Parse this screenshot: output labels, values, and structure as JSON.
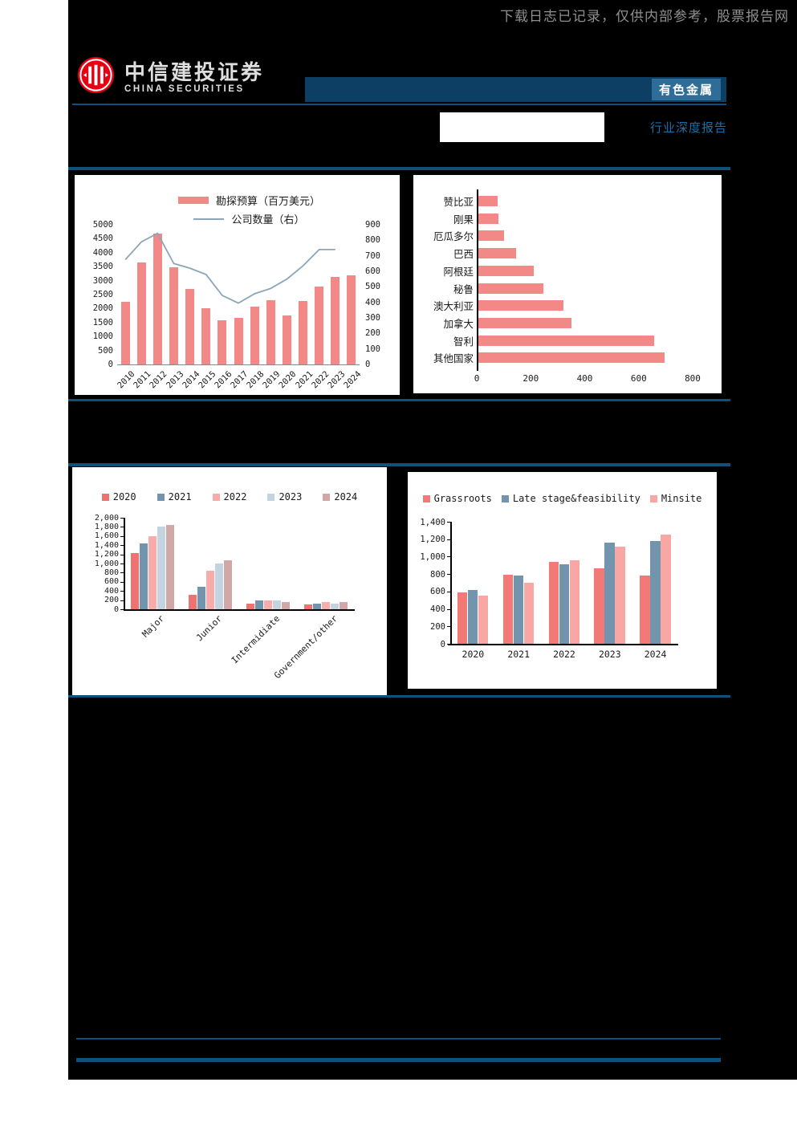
{
  "page": {
    "watermark": "下载日志已记录，仅供内部参考，股票报告网",
    "logo_cn": "中信建投证券",
    "logo_en": "CHINA SECURITIES",
    "sector_badge": "有色金属",
    "report_type_label": "行业深度报告"
  },
  "colors": {
    "page_background": "#000000",
    "rule_blue": "#0e517d",
    "header_bar_blue": "#0c3f63",
    "badge_blue": "#2d6d98",
    "report_type_text": "#1a6fa8",
    "logo_red": "#e60012",
    "bar_salmon": "#f38986",
    "line_bluegray": "#8ba6b8"
  },
  "chart_data": [
    {
      "type": "bar",
      "subtype": "bar+line-dual-axis",
      "x": [
        "2010",
        "2011",
        "2012",
        "2013",
        "2014",
        "2015",
        "2016",
        "2017",
        "2018",
        "2019",
        "2020",
        "2021",
        "2022",
        "2023",
        "2024"
      ],
      "series": [
        {
          "name": "勘探预算（百万美元）",
          "kind": "bar",
          "axis": "left",
          "color": "#f38986",
          "values": [
            2240,
            3640,
            4690,
            3480,
            2690,
            2000,
            1580,
            1680,
            2060,
            2300,
            1740,
            2270,
            2780,
            3140,
            3180
          ]
        },
        {
          "name": "公司数量（右）",
          "kind": "line",
          "axis": "right",
          "color": "#8ba6b8",
          "values": [
            675,
            790,
            845,
            650,
            620,
            580,
            445,
            395,
            455,
            490,
            550,
            635,
            740,
            740,
            null
          ]
        }
      ],
      "left_axis": {
        "min": 0,
        "max": 5000,
        "step": 500
      },
      "right_axis": {
        "min": 0,
        "max": 900,
        "step": 100
      },
      "legend_position": "top",
      "grid": false
    },
    {
      "type": "bar",
      "subtype": "horizontal",
      "categories": [
        "赞比亚",
        "刚果",
        "厄瓜多尔",
        "巴西",
        "阿根廷",
        "秘鲁",
        "澳大利亚",
        "加拿大",
        "智利",
        "其他国家"
      ],
      "values": [
        70,
        75,
        95,
        140,
        205,
        240,
        315,
        345,
        650,
        690
      ],
      "color": "#f38986",
      "xlim": [
        0,
        800
      ],
      "xticks": [
        0,
        200,
        400,
        600,
        800
      ],
      "grid": false
    },
    {
      "type": "bar",
      "subtype": "grouped",
      "categories": [
        "Major",
        "Junior",
        "Intermidiate",
        "Government/other"
      ],
      "series": [
        {
          "name": "2020",
          "color": "#ee7270",
          "values": [
            1230,
            310,
            130,
            100
          ]
        },
        {
          "name": "2021",
          "color": "#7295ad",
          "values": [
            1440,
            500,
            200,
            120
          ]
        },
        {
          "name": "2022",
          "color": "#f9aba9",
          "values": [
            1590,
            850,
            200,
            150
          ]
        },
        {
          "name": "2023",
          "color": "#c3d4e0",
          "values": [
            1810,
            1000,
            200,
            130
          ]
        },
        {
          "name": "2024",
          "color": "#d2a8a7",
          "values": [
            1850,
            1070,
            150,
            150
          ]
        }
      ],
      "ylim": [
        0,
        2000
      ],
      "ytick_step": 200,
      "legend_position": "top",
      "grid": false
    },
    {
      "type": "bar",
      "subtype": "grouped",
      "categories": [
        "2020",
        "2021",
        "2022",
        "2023",
        "2024"
      ],
      "series": [
        {
          "name": "Grassroots",
          "color": "#f37976",
          "values": [
            590,
            790,
            940,
            870,
            785
          ]
        },
        {
          "name": "Late stage&feasibility",
          "color": "#7295ad",
          "values": [
            615,
            780,
            910,
            1160,
            1180
          ]
        },
        {
          "name": "Minsite",
          "color": "#f9a7a5",
          "values": [
            550,
            705,
            960,
            1115,
            1250
          ]
        }
      ],
      "ylim": [
        0,
        1400
      ],
      "ytick_step": 200,
      "legend_position": "top",
      "grid": false
    }
  ]
}
